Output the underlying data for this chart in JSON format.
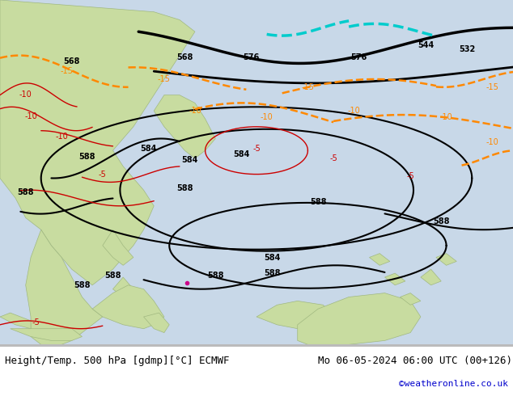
{
  "title_left": "Height/Temp. 500 hPa [gdmp][°C] ECMWF",
  "title_right": "Mo 06-05-2024 06:00 UTC (00+126)",
  "credit": "©weatheronline.co.uk",
  "bg_color": "#ffffff",
  "ocean_color": "#c8d8e8",
  "land_color": "#c8dca0",
  "land_edge": "#a0b880",
  "figsize": [
    6.34,
    4.9
  ],
  "dpi": 100,
  "caption_fontsize": 9,
  "credit_fontsize": 8,
  "credit_color": "#0000cc",
  "caption_color": "#000000"
}
